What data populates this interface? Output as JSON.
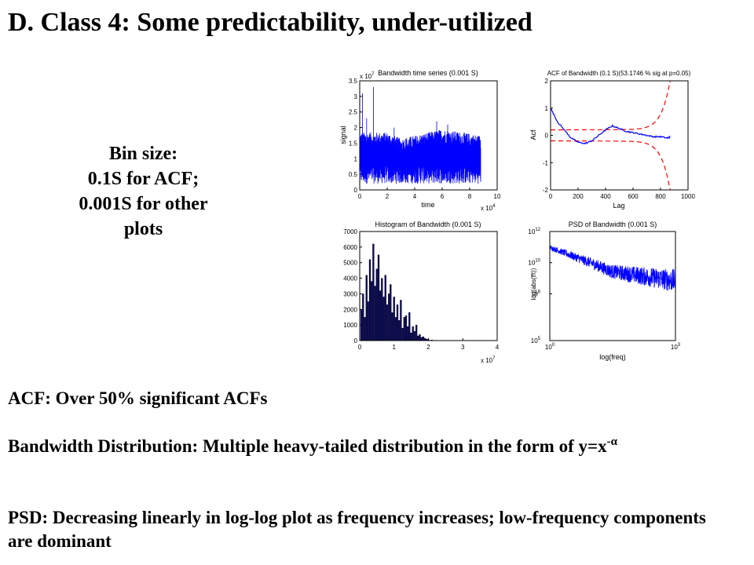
{
  "slide": {
    "title": "D. Class 4: Some predictability, under-utilized",
    "bin_size": [
      "Bin size:",
      "0.1S for ACF;",
      "0.001S for other",
      "plots"
    ],
    "bullets": [
      {
        "text": "ACF: Over 50% significant ACFs",
        "exponent": ""
      },
      {
        "text": "Bandwidth Distribution: Multiple heavy-tailed distribution in the form of y=x",
        "exponent": "-α"
      },
      {
        "text": "PSD: Decreasing linearly in log-log plot as frequency increases; low-frequency components are dominant",
        "exponent": ""
      }
    ]
  },
  "colors": {
    "series": "#0000ff",
    "bound": "#ff0000",
    "axis": "#000000"
  },
  "chart_data": [
    {
      "type": "line",
      "title": "Bandwidth time series (0.001 S)",
      "xlabel": "time",
      "ylabel": "signal",
      "x_multiplier": "x 10",
      "x_multiplier_exp": "4",
      "y_multiplier": "x 10",
      "y_multiplier_exp": "7",
      "xlim": [
        0,
        10
      ],
      "ylim": [
        0,
        3.5
      ],
      "xticks": [
        "0",
        "2",
        "4",
        "6",
        "8",
        "10"
      ],
      "yticks": [
        "0",
        "0.5",
        "1",
        "1.5",
        "2",
        "2.5",
        "3",
        "3.5"
      ],
      "series": [
        {
          "profile": [
            [
              0,
              1.5
            ],
            [
              2,
              1.5
            ],
            [
              3,
              1.3
            ],
            [
              5,
              1.5
            ],
            [
              6,
              1.6
            ],
            [
              7.5,
              1.5
            ],
            [
              8.8,
              1.4
            ]
          ],
          "min": 0.2,
          "spikes": [
            [
              0.2,
              3.1
            ],
            [
              0.5,
              2.3
            ],
            [
              1.0,
              3.3
            ],
            [
              2.5,
              2.0
            ],
            [
              5.6,
              2.2
            ],
            [
              6.4,
              2.1
            ]
          ]
        }
      ],
      "grid": false
    },
    {
      "type": "line",
      "title": "ACF of Bandwidth (0.1 S)(53.1746 % sig at p=0.05)",
      "xlabel": "Lag",
      "ylabel": "Acf",
      "xlim": [
        0,
        1000
      ],
      "ylim": [
        -2,
        2
      ],
      "xticks": [
        "0",
        "200",
        "400",
        "600",
        "800",
        "1000"
      ],
      "yticks": [
        "-2",
        "-1",
        "0",
        "1",
        "2"
      ],
      "series": [
        {
          "x": [
            0,
            50,
            100,
            150,
            200,
            250,
            300,
            350,
            400,
            450,
            500,
            550,
            600,
            650,
            700,
            750,
            800,
            850,
            870
          ],
          "y": [
            1.0,
            0.5,
            0.2,
            -0.1,
            -0.25,
            -0.3,
            -0.2,
            0.0,
            0.2,
            0.35,
            0.25,
            0.15,
            0.1,
            0.05,
            0.0,
            -0.05,
            -0.05,
            -0.1,
            -0.05
          ]
        }
      ],
      "bounds": [
        0.2,
        0.9,
        2.0
      ],
      "grid": false
    },
    {
      "type": "bar",
      "title": "Histogram of Bandwidth (0.001 S)",
      "x_multiplier": "x 10",
      "x_multiplier_exp": "7",
      "xlim": [
        0,
        4
      ],
      "ylim": [
        0,
        7000
      ],
      "xticks": [
        "0",
        "1",
        "2",
        "3",
        "4"
      ],
      "yticks": [
        "0",
        "1000",
        "2000",
        "3000",
        "4000",
        "5000",
        "6000",
        "7000"
      ],
      "bin_width": 0.05,
      "bins": [
        0.05,
        0.1,
        0.15,
        0.2,
        0.25,
        0.3,
        0.35,
        0.4,
        0.45,
        0.5,
        0.55,
        0.6,
        0.65,
        0.7,
        0.75,
        0.8,
        0.85,
        0.9,
        0.95,
        1.0,
        1.05,
        1.1,
        1.15,
        1.2,
        1.25,
        1.3,
        1.35,
        1.4,
        1.45,
        1.5,
        1.55,
        1.6,
        1.65,
        1.7,
        1.75,
        1.8,
        1.85,
        1.9,
        1.95,
        2.0,
        2.1,
        2.2,
        2.3
      ],
      "values": [
        2000,
        3000,
        1500,
        4200,
        2500,
        5200,
        3800,
        6200,
        3500,
        4600,
        5500,
        3200,
        4000,
        2800,
        4200,
        2300,
        3000,
        3600,
        1800,
        2800,
        1500,
        2300,
        1300,
        2600,
        800,
        1500,
        1600,
        900,
        1800,
        500,
        900,
        600,
        1000,
        300,
        400,
        200,
        250,
        150,
        100,
        60,
        40,
        20,
        10
      ],
      "grid": false
    },
    {
      "type": "line",
      "title": "PSD of Bandwidth (0.001 S)",
      "xlabel": "log(freq)",
      "ylabel": "log(abs(fft))",
      "xscale": "log",
      "yscale": "log",
      "xlim": [
        1,
        1000
      ],
      "ylim": [
        100000,
        1000000000000
      ],
      "xticks": [
        {
          "base": "10",
          "exp": "0"
        },
        {
          "base": "10",
          "exp": "3"
        }
      ],
      "yticks": [
        {
          "base": "10",
          "exp": "5"
        },
        {
          "base": "10",
          "exp": "8"
        },
        {
          "base": "10",
          "exp": "10"
        },
        {
          "base": "10",
          "exp": "12"
        }
      ],
      "series": [
        {
          "trend": [
            [
              1,
              100000000000
            ],
            [
              10,
              10000000000
            ],
            [
              30,
              3000000000
            ],
            [
              1000,
              800000000
            ]
          ]
        }
      ],
      "grid": false
    }
  ]
}
